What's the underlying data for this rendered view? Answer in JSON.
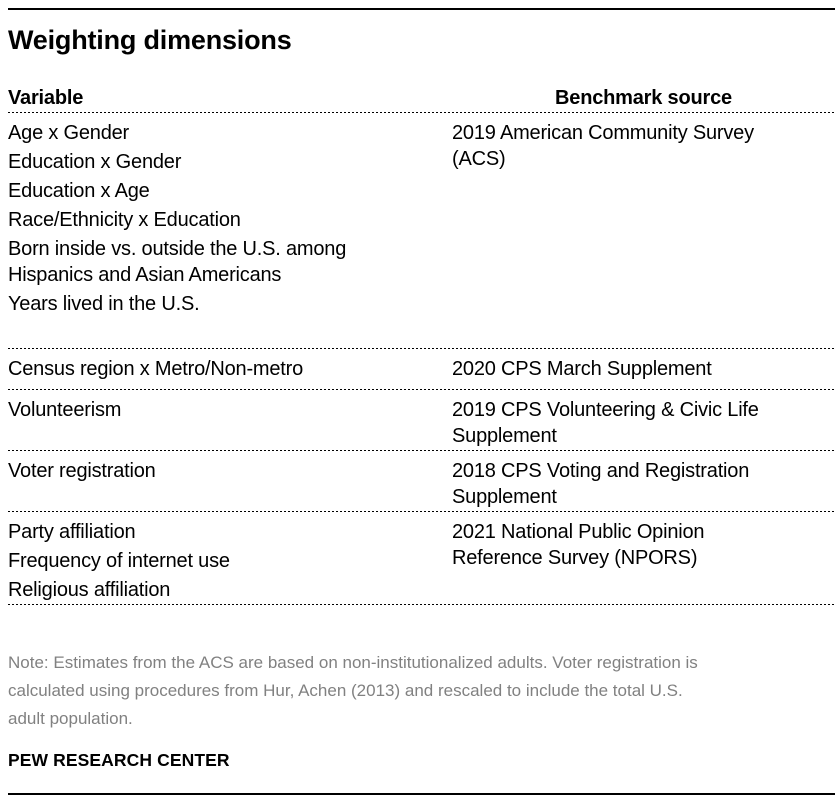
{
  "chart_data": {
    "type": "table",
    "title": "Weighting dimensions",
    "columns": [
      "Variable",
      "Benchmark source"
    ],
    "rows": [
      {
        "variables": [
          "Age x Gender",
          "Education x Gender",
          "Education x Age",
          "Race/Ethnicity x Education",
          "Born inside vs. outside the U.S. among\nHispanics and Asian Americans",
          "Years lived in the U.S."
        ],
        "benchmark_source": "2019 American Community Survey\n(ACS)"
      },
      {
        "variables": [
          "Census region x Metro/Non-metro"
        ],
        "benchmark_source": "2020 CPS March Supplement"
      },
      {
        "variables": [
          "Volunteerism"
        ],
        "benchmark_source": "2019 CPS Volunteering & Civic Life\nSupplement"
      },
      {
        "variables": [
          "Voter registration"
        ],
        "benchmark_source": "2018 CPS Voting and Registration\nSupplement"
      },
      {
        "variables": [
          "Party affiliation",
          "Frequency of internet use",
          "Religious affiliation"
        ],
        "benchmark_source": "2021 National Public Opinion\nReference Survey (NPORS)"
      }
    ],
    "note": "Note: Estimates from the ACS are based on non-institutionalized adults. Voter registration is\ncalculated using procedures from Hur, Achen (2013) and rescaled to include the total U.S.\nadult population.",
    "source_label": "PEW RESEARCH CENTER",
    "layout": {
      "legend": "none",
      "grid": "dotted row separators"
    }
  },
  "colors": {
    "text": "#000000",
    "note_text": "#818181",
    "rule": "#000000",
    "background": "#ffffff"
  }
}
